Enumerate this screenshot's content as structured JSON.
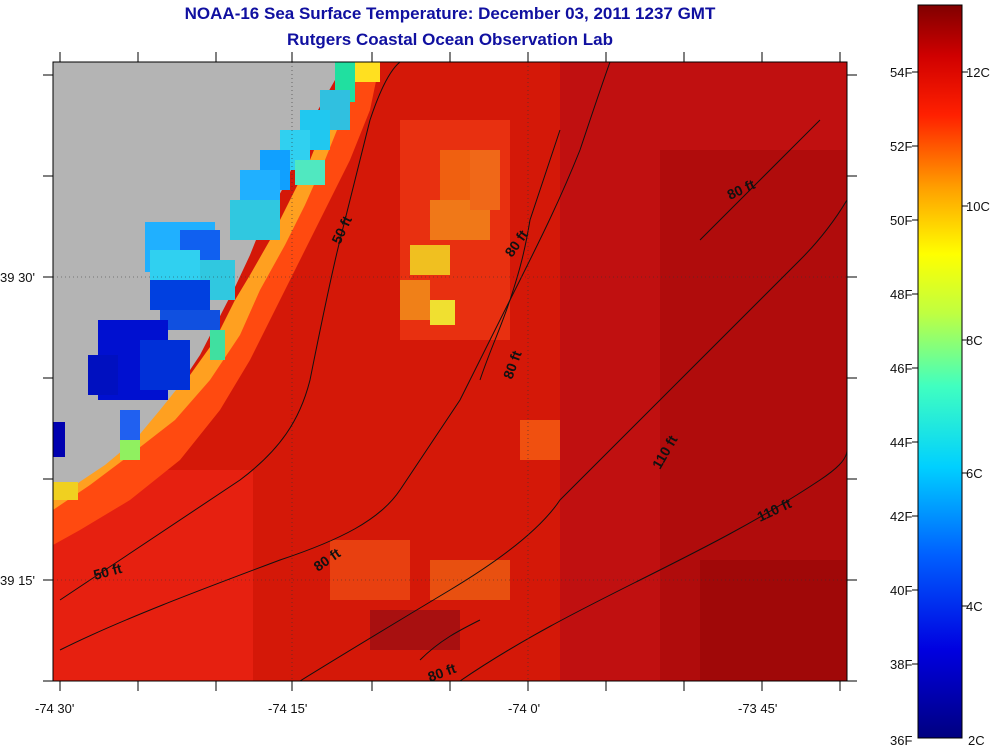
{
  "title": "NOAA-16 Sea Surface Temperature:  December 03, 2011 1237 GMT",
  "subtitle": "Rutgers Coastal Ocean Observation Lab",
  "x_ticks": [
    "-74 30'",
    "-74 15'",
    "-74 0'",
    "-73 45'"
  ],
  "y_ticks": [
    "39 30'",
    "39 15'"
  ],
  "isobaths": [
    "50 ft",
    "50 ft",
    "80 ft",
    "80 ft",
    "80 ft",
    "80 ft",
    "80 ft",
    "110 ft",
    "110 ft"
  ],
  "colorbar": {
    "fahrenheit": [
      "54F",
      "52F",
      "50F",
      "48F",
      "46F",
      "44F",
      "42F",
      "40F",
      "38F",
      "36F"
    ],
    "celsius": [
      "12C",
      "10C",
      "8C",
      "6C",
      "4C",
      "2C"
    ],
    "range_c": [
      2,
      13
    ]
  },
  "colors": {
    "land": "#b4b4b4",
    "title": "#1010a0"
  }
}
